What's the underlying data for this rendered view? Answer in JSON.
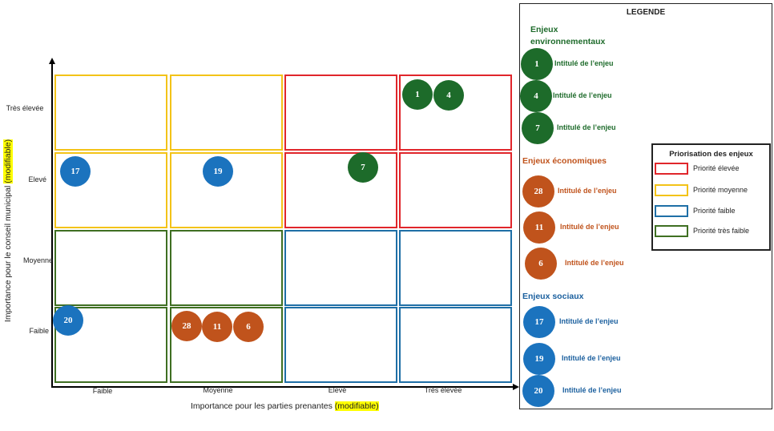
{
  "colors": {
    "red": "#e0262b",
    "yellow": "#f3c318",
    "blue": "#1f6fa6",
    "green": "#3f6f22",
    "bubble_green": "#1d6b2a",
    "bubble_orange": "#c0531c",
    "bubble_blue": "#1b73be",
    "text_green": "#1e6b2b",
    "text_orange": "#c0531c",
    "text_blue": "#1a5f9e"
  },
  "axes": {
    "y_title": "Importance pour le conseil municipal",
    "y_title_hl": "(modifiable)",
    "x_title": "Importance pour les parties prenantes",
    "x_title_hl": "(modifiable)",
    "y_ticks": [
      "Très élevée",
      "Elevé",
      "Moyenne",
      "Faible"
    ],
    "x_ticks": [
      "Faible",
      "Moyenne",
      "Elevé",
      "Très élevée"
    ]
  },
  "matrix": {
    "rows": [
      [
        "yellow",
        "yellow",
        "red",
        "red"
      ],
      [
        "yellow",
        "yellow",
        "red",
        "red"
      ],
      [
        "green",
        "green",
        "blue",
        "blue"
      ],
      [
        "green",
        "green",
        "blue",
        "blue"
      ]
    ]
  },
  "plot_bubbles": [
    {
      "label": "1",
      "group": "env"
    },
    {
      "label": "4",
      "group": "env"
    },
    {
      "label": "7",
      "group": "env"
    },
    {
      "label": "17",
      "group": "soc"
    },
    {
      "label": "19",
      "group": "soc"
    },
    {
      "label": "20",
      "group": "soc"
    },
    {
      "label": "28",
      "group": "eco"
    },
    {
      "label": "11",
      "group": "eco"
    },
    {
      "label": "6",
      "group": "eco"
    }
  ],
  "legend": {
    "title": "LEGENDE",
    "groups": {
      "env": {
        "title_line1": "Enjeux",
        "title_line2": "environnementaux",
        "items": [
          {
            "num": "1",
            "label": "Intitulé de l’enjeu"
          },
          {
            "num": "4",
            "label": "Intitulé de l’enjeu"
          },
          {
            "num": "7",
            "label": "Intitulé de l’enjeu"
          }
        ]
      },
      "eco": {
        "title": "Enjeux économiques",
        "items": [
          {
            "num": "28",
            "label": "Intitulé de l’enjeu"
          },
          {
            "num": "11",
            "label": "Intitulé de l’enjeu"
          },
          {
            "num": "6",
            "label": "Intitulé de l’enjeu"
          }
        ]
      },
      "soc": {
        "title": "Enjeux sociaux",
        "items": [
          {
            "num": "17",
            "label": "Intitulé de l’enjeu"
          },
          {
            "num": "19",
            "label": "Intitulé de l’enjeu"
          },
          {
            "num": "20",
            "label": "Intitulé de l’enjeu"
          }
        ]
      }
    },
    "priority": {
      "title": "Priorisation des enjeux",
      "items": [
        {
          "color": "red",
          "label": "Priorité  élevée"
        },
        {
          "color": "yellow",
          "label": "Priorité moyenne"
        },
        {
          "color": "blue",
          "label": "Priorité faible"
        },
        {
          "color": "green",
          "label": "Priorité très faible"
        }
      ]
    }
  }
}
